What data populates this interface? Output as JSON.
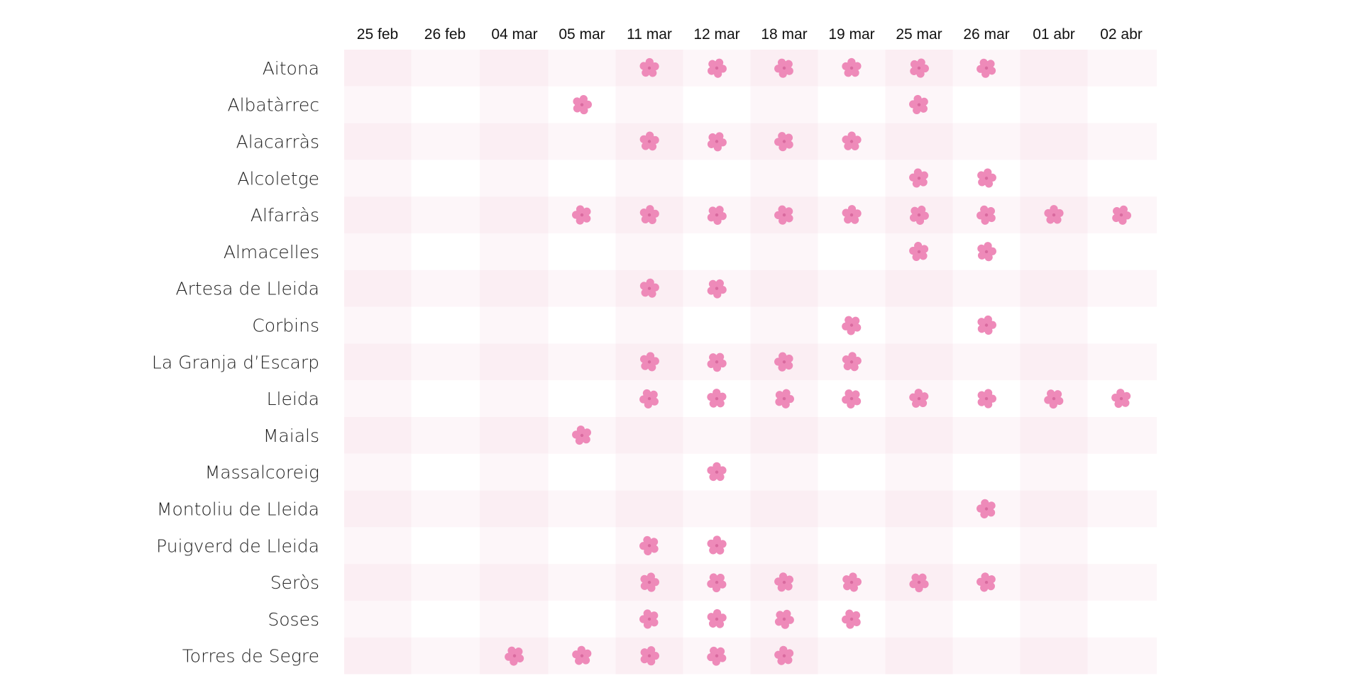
{
  "chart_data": {
    "type": "heatmap",
    "title": "",
    "columns": [
      "25 feb",
      "26 feb",
      "04 mar",
      "05 mar",
      "11 mar",
      "12 mar",
      "18 mar",
      "19 mar",
      "25 mar",
      "26 mar",
      "01 abr",
      "02 abr"
    ],
    "rows": [
      {
        "label": "Aitona",
        "marks": [
          0,
          0,
          0,
          0,
          1,
          1,
          1,
          1,
          1,
          1,
          0,
          0
        ]
      },
      {
        "label": "Albatàrrec",
        "marks": [
          0,
          0,
          0,
          1,
          0,
          0,
          0,
          0,
          1,
          0,
          0,
          0
        ]
      },
      {
        "label": "Alacarràs",
        "marks": [
          0,
          0,
          0,
          0,
          1,
          1,
          1,
          1,
          0,
          0,
          0,
          0
        ]
      },
      {
        "label": "Alcoletge",
        "marks": [
          0,
          0,
          0,
          0,
          0,
          0,
          0,
          0,
          1,
          1,
          0,
          0
        ]
      },
      {
        "label": "Alfarràs",
        "marks": [
          0,
          0,
          0,
          1,
          1,
          1,
          1,
          1,
          1,
          1,
          1,
          1
        ]
      },
      {
        "label": "Almacelles",
        "marks": [
          0,
          0,
          0,
          0,
          0,
          0,
          0,
          0,
          1,
          1,
          0,
          0
        ]
      },
      {
        "label": "Artesa de Lleida",
        "marks": [
          0,
          0,
          0,
          0,
          1,
          1,
          0,
          0,
          0,
          0,
          0,
          0
        ]
      },
      {
        "label": "Corbins",
        "marks": [
          0,
          0,
          0,
          0,
          0,
          0,
          0,
          1,
          0,
          1,
          0,
          0
        ]
      },
      {
        "label": "La Granja d’Escarp",
        "marks": [
          0,
          0,
          0,
          0,
          1,
          1,
          1,
          1,
          0,
          0,
          0,
          0
        ]
      },
      {
        "label": "Lleida",
        "marks": [
          0,
          0,
          0,
          0,
          1,
          1,
          1,
          1,
          1,
          1,
          1,
          1
        ]
      },
      {
        "label": "Maials",
        "marks": [
          0,
          0,
          0,
          1,
          0,
          0,
          0,
          0,
          0,
          0,
          0,
          0
        ]
      },
      {
        "label": "Massalcoreig",
        "marks": [
          0,
          0,
          0,
          0,
          0,
          1,
          0,
          0,
          0,
          0,
          0,
          0
        ]
      },
      {
        "label": "Montoliu de Lleida",
        "marks": [
          0,
          0,
          0,
          0,
          0,
          0,
          0,
          0,
          0,
          1,
          0,
          0
        ]
      },
      {
        "label": "Puigverd de Lleida",
        "marks": [
          0,
          0,
          0,
          0,
          1,
          1,
          0,
          0,
          0,
          0,
          0,
          0
        ]
      },
      {
        "label": "Seròs",
        "marks": [
          0,
          0,
          0,
          0,
          1,
          1,
          1,
          1,
          1,
          1,
          0,
          0
        ]
      },
      {
        "label": "Soses",
        "marks": [
          0,
          0,
          0,
          0,
          1,
          1,
          1,
          1,
          0,
          0,
          0,
          0
        ]
      },
      {
        "label": "Torres de Segre",
        "marks": [
          0,
          0,
          1,
          1,
          1,
          1,
          1,
          0,
          0,
          0,
          0,
          0
        ]
      }
    ],
    "marker_icon": "blossom-icon",
    "colors": {
      "marker": "#ee8ab9",
      "band_dark": "#fbeef3",
      "band_light": "#fdf6f9",
      "background": "#ffffff"
    }
  }
}
